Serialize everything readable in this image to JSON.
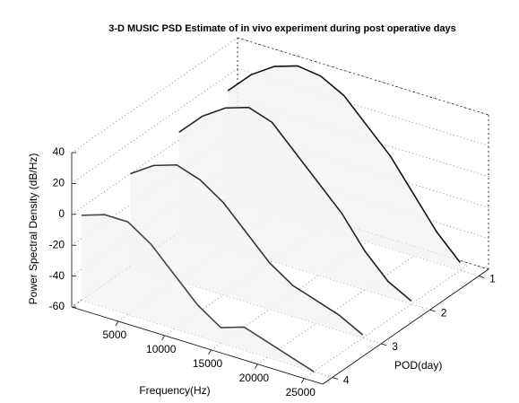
{
  "chart_data": {
    "type": "surface3d",
    "title": "3-D MUSIC PSD Estimate of in vivo experiment during post operative days",
    "x_label": "Frequency(Hz)",
    "y_label": "POD(day)",
    "z_label": "Power Spectral Density (dB/Hz)",
    "x": [
      0,
      2500,
      5000,
      7500,
      10000,
      12500,
      15000,
      17500,
      20000,
      22500,
      25000
    ],
    "series": [
      {
        "name": "1",
        "color": "#111111",
        "values": [
          10,
          25,
          35,
          40,
          38,
          30,
          15,
          0,
          -20,
          -40,
          -55
        ]
      },
      {
        "name": "2",
        "color": "#222222",
        "values": [
          5,
          20,
          30,
          35,
          30,
          15,
          0,
          -15,
          -35,
          -50,
          -58
        ]
      },
      {
        "name": "3",
        "color": "#333333",
        "values": [
          0,
          10,
          15,
          10,
          0,
          -15,
          -30,
          -40,
          -45,
          -50,
          -58
        ]
      },
      {
        "name": "4",
        "color": "#444444",
        "values": [
          -5,
          0,
          0,
          -10,
          -25,
          -40,
          -50,
          -45,
          -50,
          -55,
          -60
        ]
      }
    ],
    "xlim": [
      0,
      27000
    ],
    "ylim": [
      0.8,
      4.2
    ],
    "zlim": [
      -60,
      40
    ],
    "xticks": [
      5000,
      10000,
      15000,
      20000,
      25000
    ],
    "yticks": [
      1,
      2,
      3,
      4
    ],
    "zticks": [
      -60,
      -40,
      -20,
      0,
      20,
      40
    ],
    "grid": true
  }
}
